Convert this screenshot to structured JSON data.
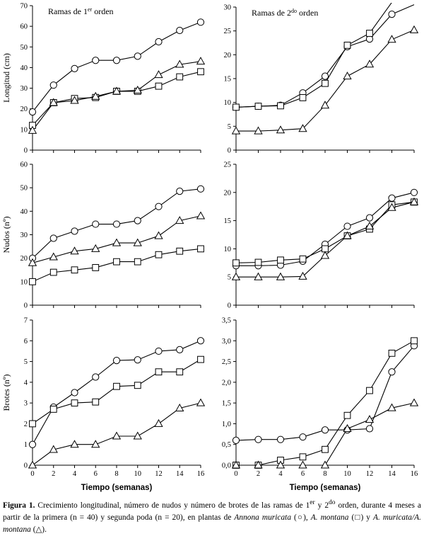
{
  "chart_data": [
    {
      "type": "line",
      "title": "Ramas de 1^er orden",
      "title_text": "Ramas de 1",
      "title_sup": "er",
      "title_suffix": " orden",
      "ylabel": "Longitud (cm)",
      "xlabel": "",
      "ylim": [
        0,
        70
      ],
      "yticks": [
        0,
        10,
        20,
        30,
        40,
        50,
        60,
        70
      ],
      "ytick_labels": [
        "0",
        "10",
        "20",
        "30",
        "40",
        "50",
        "60",
        "70"
      ],
      "xlim": [
        0,
        16
      ],
      "xticks": [
        0,
        2,
        4,
        6,
        8,
        10,
        12,
        14,
        16
      ],
      "xtick_labels": [],
      "x": [
        0,
        2,
        4,
        6,
        8,
        10,
        12,
        14,
        16
      ],
      "series": [
        {
          "marker": "circle",
          "values": [
            18.5,
            31.5,
            39.5,
            43.5,
            43.5,
            45.5,
            52.5,
            58,
            62
          ]
        },
        {
          "marker": "square",
          "values": [
            12,
            23,
            25,
            25.5,
            28.5,
            28.5,
            31,
            35.5,
            38
          ]
        },
        {
          "marker": "triangle",
          "values": [
            9.5,
            23,
            24,
            26,
            28.5,
            29,
            36.5,
            41.5,
            43
          ]
        }
      ]
    },
    {
      "type": "line",
      "title": "Ramas de 2^do orden",
      "title_text": "Ramas de 2",
      "title_sup": "do",
      "title_suffix": " orden",
      "ylabel": "",
      "xlabel": "",
      "ylim": [
        0,
        30
      ],
      "yticks": [
        0,
        5,
        10,
        15,
        20,
        25,
        30
      ],
      "ytick_labels": [
        "0",
        "5",
        "10",
        "15",
        "20",
        "25",
        "30"
      ],
      "xlim": [
        0,
        16
      ],
      "xticks": [
        0,
        2,
        4,
        6,
        8,
        10,
        12,
        14,
        16
      ],
      "xtick_labels": [],
      "x": [
        0,
        2,
        4,
        6,
        8,
        10,
        12,
        14,
        16
      ],
      "series": [
        {
          "marker": "circle",
          "values": [
            9,
            9.2,
            9.4,
            12,
            15.5,
            21.7,
            23.3,
            28.5,
            30.5
          ]
        },
        {
          "marker": "square",
          "values": [
            9,
            9.2,
            9.3,
            11,
            14,
            22,
            24.5,
            31,
            32
          ]
        },
        {
          "marker": "triangle",
          "values": [
            4,
            4,
            4.2,
            4.5,
            9.4,
            15.5,
            18,
            23.2,
            25.2
          ]
        }
      ]
    },
    {
      "type": "line",
      "ylabel": "Nudos (nº)",
      "xlabel": "",
      "ylim": [
        0,
        60
      ],
      "yticks": [
        0,
        10,
        20,
        30,
        40,
        50,
        60
      ],
      "ytick_labels": [
        "0",
        "10",
        "20",
        "30",
        "40",
        "50",
        "60"
      ],
      "xlim": [
        0,
        16
      ],
      "xticks": [
        0,
        2,
        4,
        6,
        8,
        10,
        12,
        14,
        16
      ],
      "xtick_labels": [],
      "x": [
        0,
        2,
        4,
        6,
        8,
        10,
        12,
        14,
        16
      ],
      "series": [
        {
          "marker": "circle",
          "values": [
            20,
            28.5,
            31.5,
            34.5,
            34.5,
            36,
            42,
            48.5,
            49.5
          ]
        },
        {
          "marker": "square",
          "values": [
            10,
            14,
            15,
            16,
            18.5,
            18.5,
            21.5,
            23,
            24
          ]
        },
        {
          "marker": "triangle",
          "values": [
            18,
            20.5,
            23,
            24,
            26.5,
            26.5,
            29.5,
            36,
            38
          ]
        }
      ]
    },
    {
      "type": "line",
      "ylabel": "",
      "xlabel": "",
      "ylim": [
        0,
        25
      ],
      "yticks": [
        0,
        5,
        10,
        15,
        20,
        25
      ],
      "ytick_labels": [
        "0",
        "5",
        "10",
        "15",
        "20",
        "25"
      ],
      "xlim": [
        0,
        16
      ],
      "xticks": [
        0,
        2,
        4,
        6,
        8,
        10,
        12,
        14,
        16
      ],
      "xtick_labels": [],
      "x": [
        0,
        2,
        4,
        6,
        8,
        10,
        12,
        14,
        16
      ],
      "series": [
        {
          "marker": "circle",
          "values": [
            7,
            7,
            7.1,
            7.8,
            10.8,
            14,
            15.5,
            19,
            20
          ]
        },
        {
          "marker": "square",
          "values": [
            7.5,
            7.6,
            8,
            8.2,
            10,
            12.3,
            13.5,
            17.8,
            18.3
          ]
        },
        {
          "marker": "triangle",
          "values": [
            5,
            5,
            5,
            5.1,
            8.8,
            12.3,
            14,
            17.3,
            18.3
          ]
        }
      ]
    },
    {
      "type": "line",
      "ylabel": "Brotes (nº)",
      "xlabel": "Tiempo (semanas)",
      "ylim": [
        0,
        7
      ],
      "yticks": [
        0,
        1,
        2,
        3,
        4,
        5,
        6,
        7
      ],
      "ytick_labels": [
        "0",
        "1",
        "2",
        "3",
        "4",
        "5",
        "6",
        "7"
      ],
      "xlim": [
        0,
        16
      ],
      "xticks": [
        0,
        2,
        4,
        6,
        8,
        10,
        12,
        14,
        16
      ],
      "xtick_labels": [
        "0",
        "2",
        "4",
        "6",
        "8",
        "10",
        "12",
        "14",
        "16"
      ],
      "x": [
        0,
        2,
        4,
        6,
        8,
        10,
        12,
        14,
        16
      ],
      "series": [
        {
          "marker": "circle",
          "values": [
            1,
            2.8,
            3.5,
            4.25,
            5.05,
            5.08,
            5.5,
            5.57,
            6
          ]
        },
        {
          "marker": "square",
          "values": [
            2,
            2.7,
            3,
            3.05,
            3.8,
            3.85,
            4.5,
            4.5,
            5.1
          ]
        },
        {
          "marker": "triangle",
          "values": [
            0,
            0.75,
            1,
            1,
            1.4,
            1.4,
            2,
            2.75,
            3
          ]
        }
      ]
    },
    {
      "type": "line",
      "ylabel": "",
      "xlabel": "Tiempo (semanas)",
      "ylim": [
        0,
        3.5
      ],
      "yticks": [
        0,
        0.5,
        1,
        1.5,
        2,
        2.5,
        3,
        3.5
      ],
      "ytick_labels": [
        "0,0",
        "0,5",
        "1,0",
        "1,5",
        "2,0",
        "2,5",
        "3,0",
        "3,5"
      ],
      "xlim": [
        0,
        16
      ],
      "xticks": [
        0,
        2,
        4,
        6,
        8,
        10,
        12,
        14,
        16
      ],
      "xtick_labels": [
        "0",
        "2",
        "4",
        "6",
        "8",
        "10",
        "12",
        "14",
        "16"
      ],
      "x": [
        0,
        2,
        4,
        6,
        8,
        10,
        12,
        14,
        16
      ],
      "series": [
        {
          "marker": "circle",
          "values": [
            0.6,
            0.62,
            0.62,
            0.68,
            0.85,
            0.85,
            0.88,
            2.25,
            2.88
          ]
        },
        {
          "marker": "square",
          "values": [
            0,
            0,
            0.12,
            0.2,
            0.38,
            1.2,
            1.8,
            2.7,
            3
          ]
        },
        {
          "marker": "triangle",
          "values": [
            0,
            0,
            0,
            0,
            0,
            0.88,
            1.1,
            1.38,
            1.5
          ]
        }
      ]
    }
  ],
  "caption": {
    "label": "Figura 1.",
    "text_1": " Crecimiento longitudinal, número de nudos y número de brotes de las ramas de 1",
    "sup_1": "er",
    "text_2": " y 2",
    "sup_2": "do",
    "text_3": " orden, durante 4 meses a partir de la primera (n = 40) y segunda poda (n = 20), en plantas de ",
    "species_1": "Annona muricata",
    "text_4": " (○), ",
    "species_2": "A. montana",
    "text_5": " (□) y ",
    "species_3": "A. muricata/A. montana",
    "text_6": " (△)."
  }
}
